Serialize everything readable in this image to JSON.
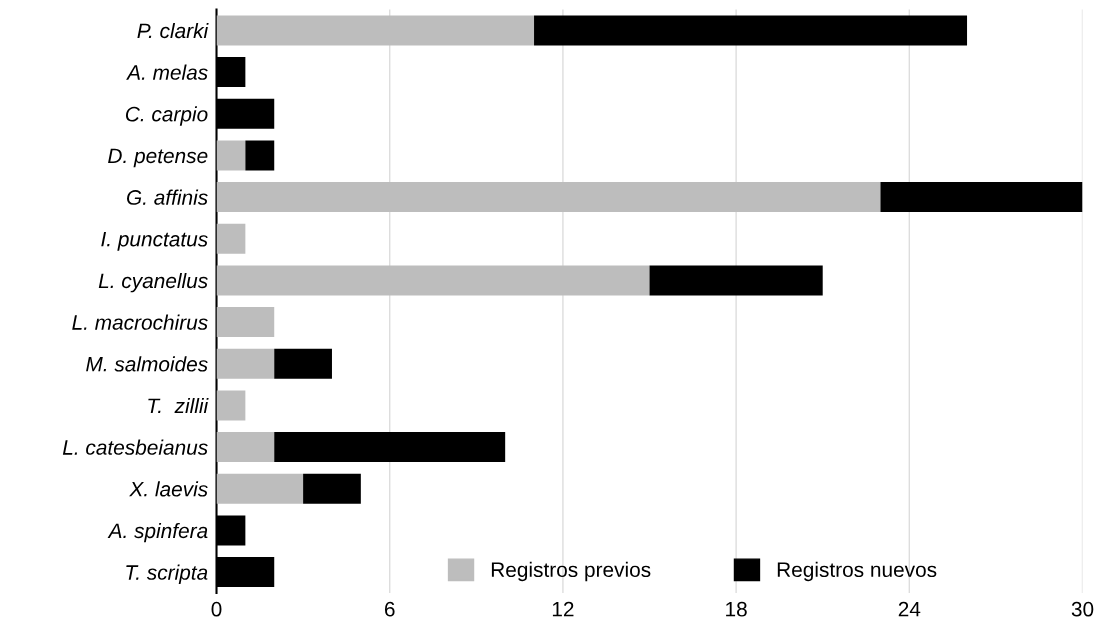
{
  "chart_data": {
    "type": "bar",
    "orientation": "horizontal",
    "stacked": true,
    "categories": [
      "P. clarki",
      "A. melas",
      "C. carpio",
      "D. petense",
      "G. affinis",
      "I. punctatus",
      "L. cyanellus",
      "L. macrochirus",
      "M. salmoides",
      "T.  zillii",
      "L. catesbeianus",
      "X. laevis",
      "A. spinfera",
      "T. scripta"
    ],
    "series": [
      {
        "name": "Registros previos",
        "color": "#bdbdbd",
        "values": [
          11,
          0,
          0,
          1,
          23,
          1,
          15,
          2,
          2,
          1,
          2,
          3,
          0,
          0
        ]
      },
      {
        "name": "Registros nuevos",
        "color": "#000000",
        "values": [
          15,
          1,
          2,
          1,
          7,
          0,
          6,
          0,
          2,
          0,
          8,
          2,
          1,
          2
        ]
      }
    ],
    "xlim": [
      0,
      30
    ],
    "xticks": [
      0,
      6,
      12,
      18,
      24,
      30
    ],
    "grid": "x",
    "legend": "bottom"
  }
}
